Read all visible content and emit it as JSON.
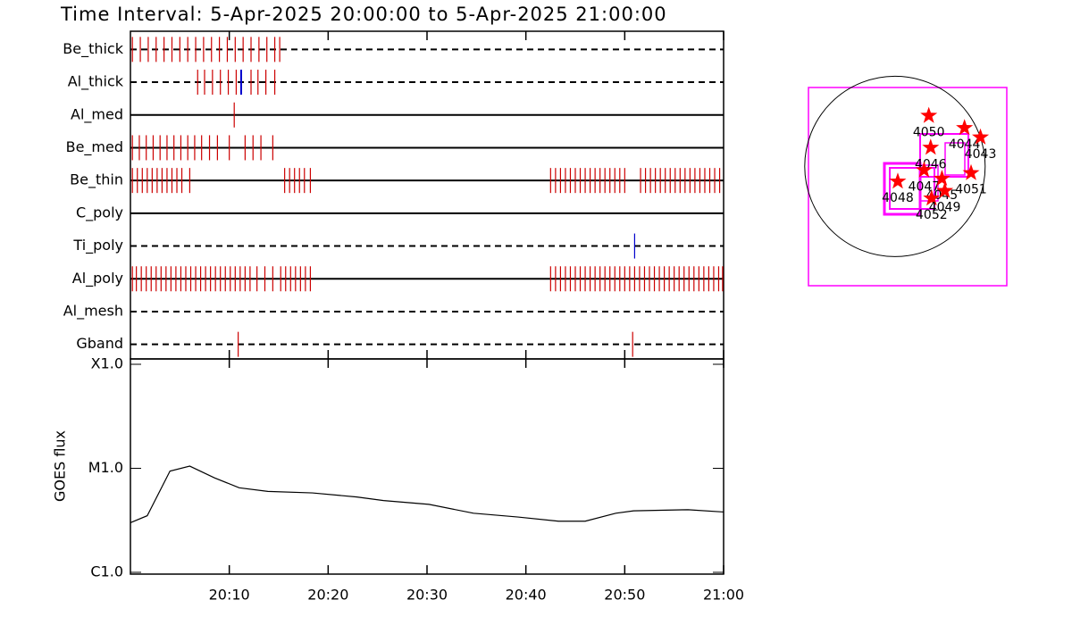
{
  "chart_data": [
    {
      "type": "timeline",
      "title": "Time Interval:  5-Apr-2025 20:00:00 to  5-Apr-2025 21:00:00",
      "xlim": [
        0,
        60
      ],
      "rows": [
        {
          "name": "Be_thick",
          "style": "dashed",
          "color": "#cc0000",
          "times": [
            0.2,
            1.0,
            1.8,
            2.6,
            3.4,
            4.2,
            5.0,
            5.8,
            6.6,
            7.4,
            8.2,
            9.0,
            9.8,
            10.6,
            11.4,
            12.2,
            13.0,
            13.8,
            14.6,
            15.1
          ]
        },
        {
          "name": "Al_thick",
          "style": "dashed",
          "color": "#cc0000",
          "times": [
            6.8,
            7.5,
            8.3,
            9.1,
            9.9,
            10.7,
            12.2,
            12.9,
            13.7,
            14.6
          ],
          "highlight_color": "#0000cc",
          "highlight_times": [
            11.2
          ]
        },
        {
          "name": "Al_med",
          "style": "solid",
          "color": "#cc0000",
          "times": [
            10.5
          ]
        },
        {
          "name": "Be_med",
          "style": "solid",
          "color": "#cc0000",
          "times": [
            0.2,
            0.9,
            1.6,
            2.3,
            3.0,
            3.7,
            4.4,
            5.1,
            5.8,
            6.5,
            7.2,
            8.0,
            8.8,
            10.0,
            11.6,
            12.4,
            13.2,
            14.4
          ]
        },
        {
          "name": "Be_thin",
          "style": "solid",
          "color": "#cc0000",
          "times": [
            0.2,
            0.7,
            1.2,
            1.7,
            2.2,
            2.7,
            3.2,
            3.7,
            4.2,
            4.7,
            5.2,
            6.0,
            15.6,
            16.1,
            16.6,
            17.1,
            17.6,
            18.2,
            42.5,
            43.0,
            43.5,
            44.0,
            44.5,
            45.0,
            45.5,
            46.0,
            46.5,
            47.0,
            47.5,
            48.0,
            48.5,
            49.0,
            49.5,
            50.0,
            51.6,
            52.1,
            52.6,
            53.1,
            53.6,
            54.1,
            54.6,
            55.1,
            55.6,
            56.1,
            56.6,
            57.1,
            57.6,
            58.1,
            58.6,
            59.1,
            59.6
          ]
        },
        {
          "name": "C_poly",
          "style": "solid",
          "color": "#cc0000",
          "times": []
        },
        {
          "name": "Ti_poly",
          "style": "dashed",
          "color": "#0000cc",
          "times": [
            51.0
          ]
        },
        {
          "name": "Al_poly",
          "style": "solid",
          "color": "#cc0000",
          "times": [
            0.2,
            0.6,
            1.1,
            1.6,
            2.1,
            2.6,
            3.1,
            3.6,
            4.1,
            4.6,
            5.1,
            5.6,
            6.1,
            6.6,
            7.1,
            7.6,
            8.1,
            8.6,
            9.1,
            9.6,
            10.1,
            10.6,
            11.1,
            11.6,
            12.1,
            12.8,
            13.6,
            14.4,
            15.2,
            15.7,
            16.2,
            16.7,
            17.2,
            17.7,
            18.2,
            42.5,
            43.0,
            43.5,
            44.0,
            44.5,
            45.0,
            45.5,
            46.0,
            46.5,
            47.0,
            47.5,
            48.0,
            48.5,
            49.0,
            49.5,
            50.0,
            50.5,
            51.0,
            51.5,
            52.0,
            52.5,
            53.0,
            53.5,
            54.0,
            54.5,
            55.0,
            55.5,
            56.0,
            56.5,
            57.0,
            57.5,
            58.0,
            58.5,
            59.0,
            59.5,
            59.9
          ]
        },
        {
          "name": "Al_mesh",
          "style": "dashed",
          "color": "#cc0000",
          "times": []
        },
        {
          "name": "Gband",
          "style": "dashed",
          "color": "#cc0000",
          "times": [
            10.9,
            50.8
          ]
        }
      ]
    },
    {
      "type": "line",
      "ylabel": "GOES flux",
      "color": "#000000",
      "log_y": true,
      "x": [
        0,
        1.7,
        4.0,
        6.0,
        8.5,
        11.0,
        13.9,
        18.4,
        22.9,
        25.6,
        30.2,
        34.7,
        39.2,
        43.3,
        46.0,
        49.1,
        50.9,
        56.4,
        60
      ],
      "values": [
        3e-06,
        3.5e-06,
        9.4e-06,
        1.05e-05,
        8.1e-06,
        6.5e-06,
        6e-06,
        5.8e-06,
        5.3e-06,
        4.9e-06,
        4.5e-06,
        3.7e-06,
        3.4e-06,
        3.1e-06,
        3.1e-06,
        3.7e-06,
        3.9e-06,
        4e-06,
        3.8e-06
      ],
      "xlim": [
        0,
        60
      ],
      "xticks": [
        {
          "value": 10,
          "label": "20:10"
        },
        {
          "value": 20,
          "label": "20:20"
        },
        {
          "value": 30,
          "label": "20:30"
        },
        {
          "value": 40,
          "label": "20:40"
        },
        {
          "value": 50,
          "label": "20:50"
        },
        {
          "value": 60,
          "label": "21:00"
        }
      ],
      "ylim": [
        1e-06,
        0.0001
      ],
      "yticks": [
        {
          "value": 1e-06,
          "label": "C1.0"
        },
        {
          "value": 1e-05,
          "label": "M1.0"
        },
        {
          "value": 0.0001,
          "label": "X1.0"
        }
      ]
    },
    {
      "type": "map",
      "xlim": [
        -920,
        1190
      ],
      "ylim": [
        -1270,
        840
      ],
      "disk_radius": 960,
      "color": "#ff00ff",
      "star_color": "#ff0000",
      "regions": [
        {
          "label": "4050",
          "x": 360,
          "y": 540
        },
        {
          "label": "4044",
          "x": 740,
          "y": 410
        },
        {
          "label": "4043",
          "x": 910,
          "y": 310
        },
        {
          "label": "4046",
          "x": 380,
          "y": 200
        },
        {
          "label": "4048",
          "x": 30,
          "y": -160
        },
        {
          "label": "4047",
          "x": 310,
          "y": -40
        },
        {
          "label": "4045",
          "x": 500,
          "y": -130
        },
        {
          "label": "4051",
          "x": 810,
          "y": -70
        },
        {
          "label": "4052",
          "x": 390,
          "y": -340
        },
        {
          "label": "4049",
          "x": 530,
          "y": -260
        }
      ]
    }
  ]
}
